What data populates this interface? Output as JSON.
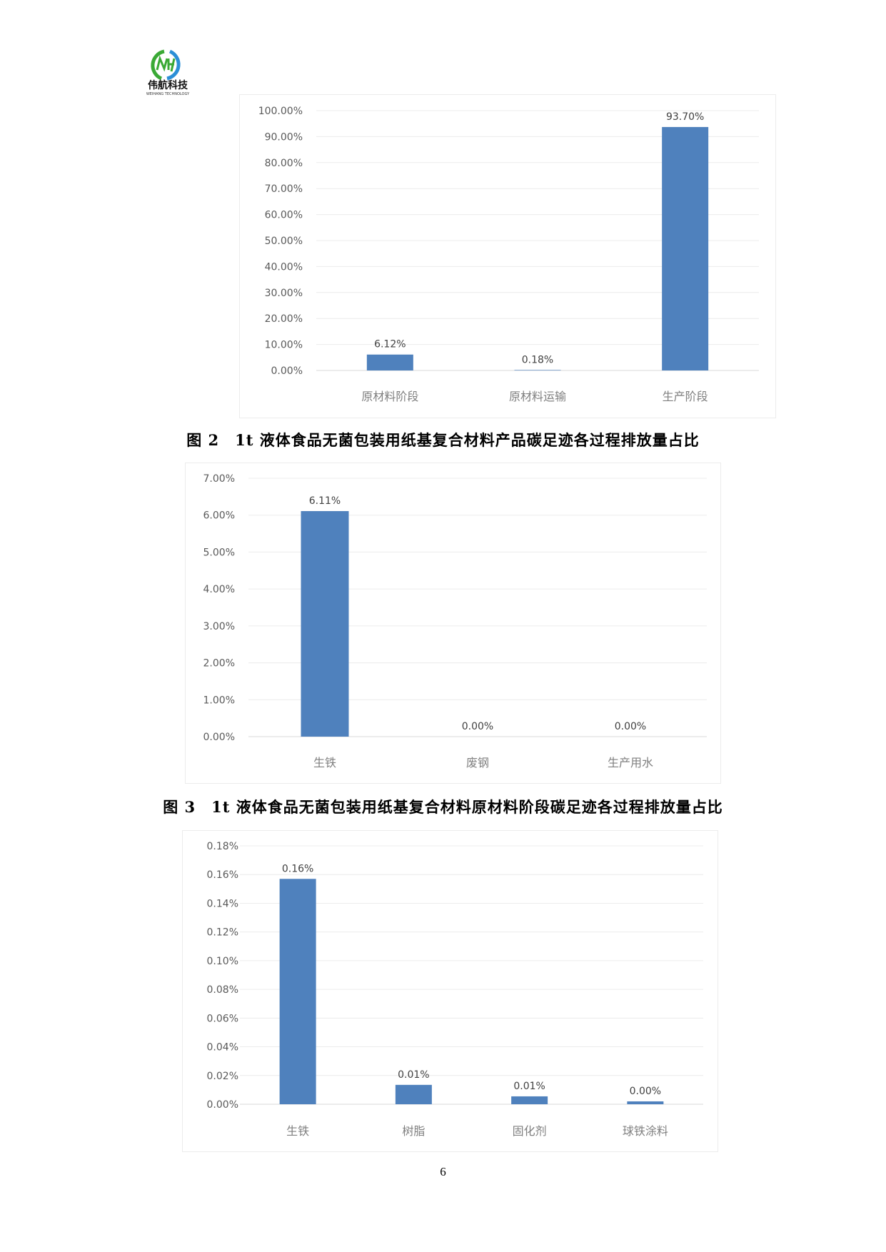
{
  "header": {
    "logo_text": "伟航科技",
    "logo_subtext": "WEIHANG TECHNOLOGY"
  },
  "colors": {
    "bar": "#4f81bd",
    "grid": "#ececec",
    "label": "#595959"
  },
  "chart_data": [
    {
      "type": "bar",
      "categories": [
        "原材料阶段",
        "原材料运输",
        "生产阶段"
      ],
      "values": [
        6.12,
        0.18,
        93.7
      ],
      "data_labels": [
        "6.12%",
        "0.18%",
        "93.70%"
      ],
      "yticks": [
        "0.00%",
        "10.00%",
        "20.00%",
        "30.00%",
        "40.00%",
        "50.00%",
        "60.00%",
        "70.00%",
        "80.00%",
        "90.00%",
        "100.00%"
      ],
      "ylim": [
        0,
        100
      ],
      "grid": true,
      "legend": "none"
    },
    {
      "type": "bar",
      "categories": [
        "生铁",
        "废钢",
        "生产用水"
      ],
      "values": [
        6.11,
        0.0,
        0.0
      ],
      "data_labels": [
        "6.11%",
        "0.00%",
        "0.00%"
      ],
      "yticks": [
        "0.00%",
        "1.00%",
        "2.00%",
        "3.00%",
        "4.00%",
        "5.00%",
        "6.00%",
        "7.00%"
      ],
      "ylim": [
        0,
        7
      ],
      "grid": true,
      "legend": "none"
    },
    {
      "type": "bar",
      "categories": [
        "生铁",
        "树脂",
        "固化剂",
        "球铁涂料"
      ],
      "values": [
        0.157,
        0.0135,
        0.0055,
        0.002
      ],
      "data_labels": [
        "0.16%",
        "0.01%",
        "0.01%",
        "0.00%"
      ],
      "yticks": [
        "0.00%",
        "0.02%",
        "0.04%",
        "0.06%",
        "0.08%",
        "0.10%",
        "0.12%",
        "0.14%",
        "0.16%",
        "0.18%"
      ],
      "ylim": [
        0,
        0.18
      ],
      "grid": true,
      "legend": "none"
    }
  ],
  "captions": [
    "图 2　1t 液体食品无菌包装用纸基复合材料产品碳足迹各过程排放量占比",
    "图 3　1t 液体食品无菌包装用纸基复合材料原材料阶段碳足迹各过程排放量占比"
  ],
  "page_number": "6"
}
